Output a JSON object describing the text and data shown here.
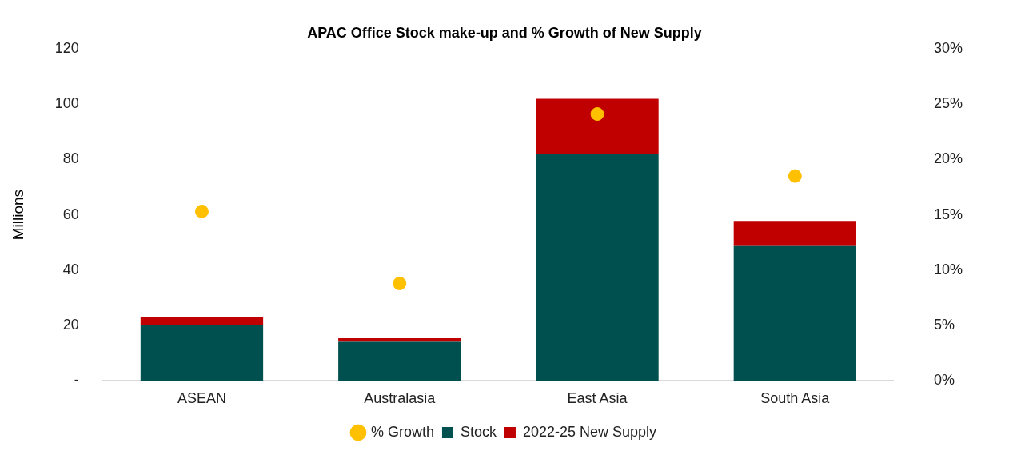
{
  "chart_data": {
    "type": "bar",
    "title": "APAC Office Stock make-up and % Growth of New Supply",
    "ylabel": "Millions",
    "categories": [
      "ASEAN",
      "Australasia",
      "East Asia",
      "South Asia"
    ],
    "stacked": true,
    "series": [
      {
        "name": "Stock",
        "color": "#005050",
        "values": [
          20.2,
          14.1,
          82.1,
          48.7
        ]
      },
      {
        "name": "2022-25 New Supply",
        "color": "#c00000",
        "values": [
          3.0,
          1.3,
          19.8,
          9.1
        ]
      },
      {
        "name": "% Growth",
        "type": "scatter",
        "axis": "y2",
        "color": "#ffc000",
        "values": [
          15.3,
          8.8,
          24.1,
          18.5
        ]
      }
    ],
    "ylim": [
      0,
      120
    ],
    "yticks": [
      {
        "value": 0,
        "label": "-"
      },
      20,
      40,
      60,
      80,
      100,
      120
    ],
    "y2lim": [
      0,
      30
    ],
    "y2ticks": [
      {
        "value": 0,
        "label": "0%"
      },
      {
        "value": 5,
        "label": "5%"
      },
      {
        "value": 10,
        "label": "10%"
      },
      {
        "value": 15,
        "label": "15%"
      },
      {
        "value": 20,
        "label": "20%"
      },
      {
        "value": 25,
        "label": "25%"
      },
      {
        "value": 30,
        "label": "30%"
      }
    ],
    "marker": "circle",
    "grid": false,
    "legend": "bottom"
  }
}
